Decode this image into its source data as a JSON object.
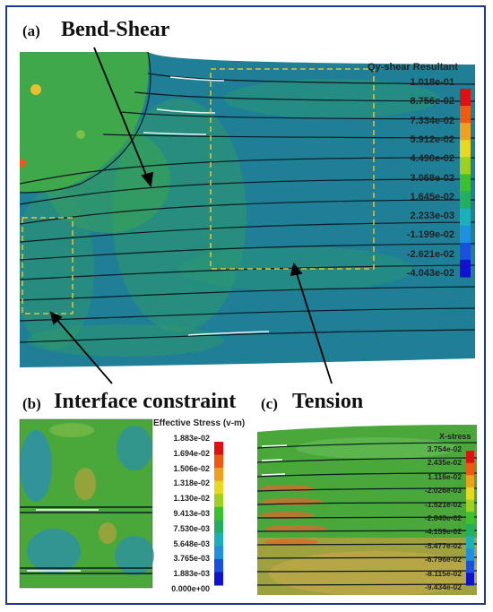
{
  "panel_a": {
    "label": "(a)",
    "title": "Bend-Shear",
    "scale_title": "Qy-shear Resultant",
    "ticks": [
      "1.018e-01",
      "8.756e-02",
      "7.334e-02",
      "5.912e-02",
      "4.490e-02",
      "3.068e-02",
      "1.645e-02",
      "2.233e-03",
      "-1.199e-02",
      "-2.621e-02",
      "-4.043e-02"
    ]
  },
  "panel_b": {
    "label": "(b)",
    "title": "Interface constraint",
    "scale_title": "Effective Stress (v-m)",
    "ticks": [
      "1.883e-02",
      "1.694e-02",
      "1.506e-02",
      "1.318e-02",
      "1.130e-02",
      "9.413e-03",
      "7.530e-03",
      "5.648e-03",
      "3.765e-03",
      "1.883e-03",
      "0.000e+00"
    ]
  },
  "panel_c": {
    "label": "(c)",
    "title": "Tension",
    "scale_title": "X-stress",
    "ticks": [
      "3.754e-02",
      "2.435e-02",
      "1.116e-02",
      "-2.026e-03",
      "-1.521e-02",
      "-2.840e-02",
      "-4.159e-02",
      "-5.477e-02",
      "-6.796e-02",
      "-8.115e-02",
      "-9.434e-02"
    ]
  },
  "colors": {
    "frame": "#1f3a8a",
    "dashed_box": "#e8c430",
    "model_teal": "#1f7f96",
    "model_green": "#3ea84a",
    "colorbar": [
      "#e01010",
      "#f05a10",
      "#f0a020",
      "#e8d820",
      "#9ed020",
      "#3cc030",
      "#22b060",
      "#1cb0b8",
      "#2090e0",
      "#1a50e0",
      "#1010d0"
    ]
  }
}
